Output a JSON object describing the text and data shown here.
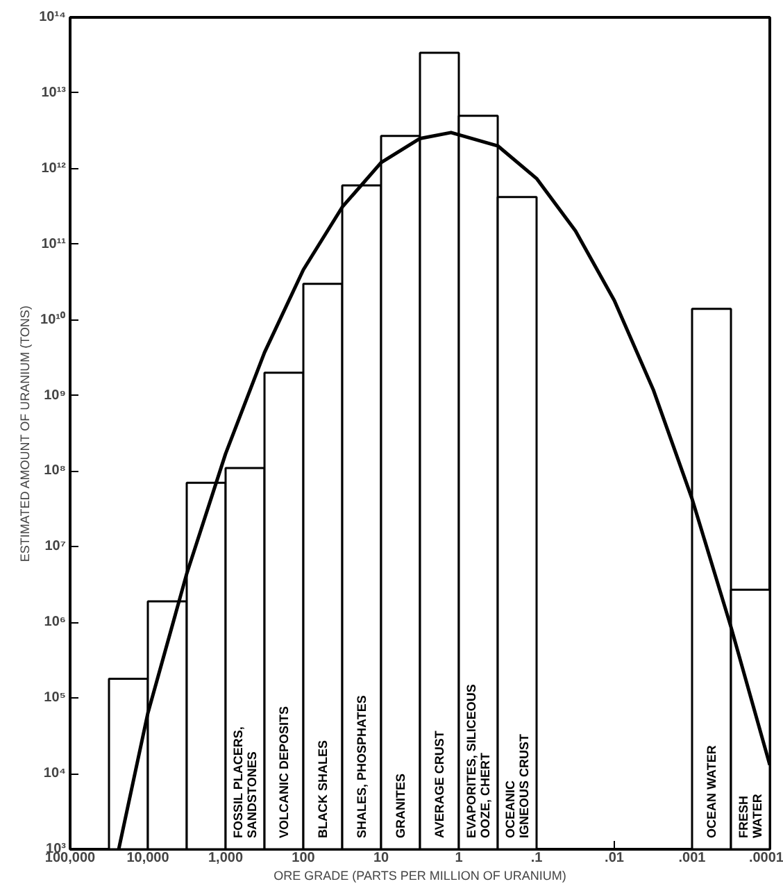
{
  "chart_data": {
    "type": "histogram",
    "xlabel": "ORE GRADE (PARTS PER MILLION OF URANIUM)",
    "ylabel": "ESTIMATED AMOUNT OF URANIUM (TONS)",
    "log": "xy",
    "grid": false,
    "xlim": [
      100000,
      0.0001
    ],
    "ylim": [
      1000,
      100000000000000
    ],
    "xticks": [
      {
        "value": 100000,
        "label": "100,000"
      },
      {
        "value": 10000,
        "label": "10,000"
      },
      {
        "value": 1000,
        "label": "1,000"
      },
      100,
      10,
      1,
      {
        "value": 0.1,
        "label": ".1"
      },
      {
        "value": 0.01,
        "label": ".01"
      },
      {
        "value": 0.001,
        "label": ".001"
      },
      {
        "value": 0.0001,
        "label": ".0001"
      }
    ],
    "yticks": [
      {
        "value": 1000,
        "label": "10³"
      },
      {
        "value": 10000,
        "label": "10⁴"
      },
      {
        "value": 100000,
        "label": "10⁵"
      },
      {
        "value": 1000000,
        "label": "10⁶"
      },
      {
        "value": 10000000,
        "label": "10⁷"
      },
      {
        "value": 100000000,
        "label": "10⁸"
      },
      {
        "value": 1000000000,
        "label": "10⁹"
      },
      {
        "value": 10000000000,
        "label": "10¹⁰"
      },
      {
        "value": 100000000000,
        "label": "10¹¹"
      },
      {
        "value": 1000000000000,
        "label": "10¹²"
      },
      {
        "value": 10000000000000,
        "label": "10¹³"
      },
      {
        "value": 100000000000000,
        "label": "10¹⁴"
      }
    ],
    "color": "#ffffff",
    "categories": [
      null,
      null,
      null,
      "FOSSIL PLACERS,\nSANDSTONES",
      "VOLCANIC DEPOSITS",
      "BLACK SHALES",
      "SHALES, PHOSPHATES",
      "GRANITES",
      "AVERAGE CRUST",
      "EVAPORITES, SILICEOUS\nOOZE, CHERT",
      "OCEANIC\nIGNEOUS CRUST",
      null,
      null,
      null,
      null,
      "OCEAN WATER",
      "FRESH\nWATER"
    ],
    "bins": [
      31623,
      10000,
      3162,
      1000,
      316,
      100,
      31.6,
      10,
      3.16,
      1,
      0.316,
      0.1,
      0.0316,
      0.01,
      0.00316,
      0.001,
      0.000316,
      0.0001
    ],
    "values": [
      180000,
      1900000,
      70000000,
      110000000,
      2000000000,
      30000000000,
      600000000000,
      2700000000000,
      34000000000000,
      5000000000000,
      420000000000,
      null,
      null,
      null,
      null,
      14000000000,
      2700000
    ],
    "series": [
      {
        "type": "line",
        "color": "#000000",
        "x": [
          23700,
          10000,
          3162,
          1000,
          316,
          100,
          31.6,
          10,
          3.16,
          1.26,
          0.316,
          0.1,
          0.0316,
          0.01,
          0.00316,
          0.001,
          0.000316,
          0.0001
        ],
        "values": [
          1000,
          63000,
          4400000,
          170000000,
          3700000000,
          46000000000,
          310000000000,
          1200000000000,
          2500000000000,
          3000000000000,
          2000000000000,
          740000000000,
          150000000000,
          18000000000,
          1200000000,
          43000000,
          870000,
          13000
        ]
      }
    ]
  }
}
